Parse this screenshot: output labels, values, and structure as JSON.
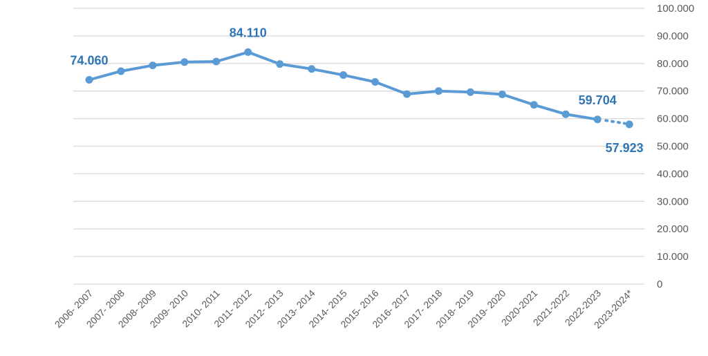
{
  "chart_data": {
    "type": "line",
    "title": "",
    "xlabel": "",
    "ylabel": "",
    "ylim": [
      0,
      100000
    ],
    "y_ticks": [
      0,
      10000,
      20000,
      30000,
      40000,
      50000,
      60000,
      70000,
      80000,
      90000,
      100000
    ],
    "y_tick_labels": [
      "0",
      "10.000",
      "20.000",
      "30.000",
      "40.000",
      "50.000",
      "60.000",
      "70.000",
      "80.000",
      "90.000",
      "100.000"
    ],
    "y_axis_side": "right",
    "grid": true,
    "legend": "none",
    "categories": [
      "2006- 2007",
      "2007- 2008",
      "2008- 2009",
      "2009- 2010",
      "2010- 2011",
      "2011- 2012",
      "2012- 2013",
      "2013- 2014",
      "2014- 2015",
      "2015- 2016",
      "2016- 2017",
      "2017- 2018",
      "2018- 2019",
      "2019- 2020",
      "2020-2021",
      "2021-2022",
      "2022-2023",
      "2023-2024*"
    ],
    "series": [
      {
        "values": [
          74060,
          77200,
          79300,
          80500,
          80700,
          84110,
          79800,
          78000,
          75800,
          73300,
          68900,
          70000,
          69600,
          68800,
          65000,
          61600,
          59704,
          57923
        ],
        "dashed_last_segment": true
      }
    ],
    "data_labels": [
      {
        "index": 0,
        "text": "74.060"
      },
      {
        "index": 5,
        "text": "84.110"
      },
      {
        "index": 16,
        "text": "59.704"
      },
      {
        "index": 17,
        "text": "57.923"
      }
    ],
    "colors": {
      "line": "#5b9bd5",
      "label": "#2e75b6",
      "grid": "#d9d9d9",
      "tick": "#595959"
    }
  }
}
